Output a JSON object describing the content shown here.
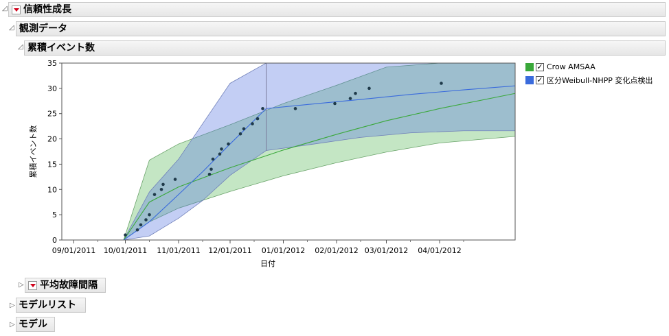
{
  "report": {
    "title": "信頼性成長",
    "observed_section": "観測データ",
    "cumulative_section": "累積イベント数",
    "mtbf_section": "平均故障間隔",
    "model_list_section": "モデルリスト",
    "model_section": "モデル"
  },
  "legend": {
    "items": [
      {
        "label": "Crow AMSAA",
        "color": "#3aa83a",
        "checked": true
      },
      {
        "label": "区分Weibull-NHPP 変化点検出",
        "color": "#3a6bdc",
        "checked": true
      }
    ]
  },
  "chart_data": {
    "type": "scatter",
    "title": "",
    "xlabel": "日付",
    "ylabel": "累積イベント数",
    "xlim": [
      "2011-08-25",
      "2012-05-15"
    ],
    "ylim": [
      0,
      35
    ],
    "yticks": [
      0,
      5,
      10,
      15,
      20,
      25,
      30,
      35
    ],
    "xticks": [
      "09/01/2011",
      "10/01/2011",
      "11/01/2011",
      "12/01/2011",
      "01/01/2012",
      "02/01/2012",
      "03/01/2012",
      "04/01/2012"
    ],
    "grid": false,
    "legend_position": "right",
    "points": {
      "x": [
        "2011-10-01",
        "2011-10-08",
        "2011-10-10",
        "2011-10-13",
        "2011-10-15",
        "2011-10-18",
        "2011-10-22",
        "2011-10-23",
        "2011-10-30",
        "2011-11-19",
        "2011-11-20",
        "2011-11-21",
        "2011-11-25",
        "2011-11-26",
        "2011-11-30",
        "2011-12-07",
        "2011-12-09",
        "2011-12-14",
        "2011-12-17",
        "2011-12-20",
        "2012-01-08",
        "2012-01-31",
        "2012-02-09",
        "2012-02-12",
        "2012-02-20",
        "2012-04-02"
      ],
      "y": [
        1,
        2,
        3,
        4,
        5,
        9,
        10,
        11,
        12,
        13,
        14,
        16,
        17,
        18,
        19,
        21,
        22,
        23,
        24,
        26,
        26,
        27,
        28,
        29,
        30,
        31
      ]
    },
    "series": [
      {
        "name": "Crow AMSAA",
        "color": "#3aa83a",
        "x": [
          "2011-09-30",
          "2011-10-15",
          "2011-11-01",
          "2011-12-01",
          "2012-01-01",
          "2012-02-01",
          "2012-03-01",
          "2012-04-01",
          "2012-05-15"
        ],
        "y": [
          0,
          7.5,
          10.5,
          14.3,
          17.8,
          20.9,
          23.6,
          26.0,
          29.0
        ],
        "lower": [
          0,
          3.6,
          6.3,
          9.6,
          12.7,
          15.3,
          17.4,
          19.2,
          20.5
        ],
        "upper": [
          0,
          15.8,
          19.0,
          22.8,
          27.0,
          30.6,
          34.2,
          37.5,
          41.0
        ]
      },
      {
        "name": "区分Weibull-NHPP 変化点検出",
        "color": "#3a6bdc",
        "change_point": "2011-12-22",
        "x": [
          "2011-09-30",
          "2011-10-15",
          "2011-11-01",
          "2011-11-15",
          "2011-12-01",
          "2011-12-22",
          "2012-01-15",
          "2012-02-15",
          "2012-03-15",
          "2012-04-15",
          "2012-05-15"
        ],
        "y": [
          0,
          3.6,
          9.0,
          13.5,
          19.0,
          26.0,
          26.8,
          27.8,
          28.8,
          29.7,
          30.5
        ],
        "lower": [
          0,
          0.8,
          4.3,
          7.8,
          12.8,
          17.7,
          18.8,
          20.3,
          21.2,
          21.6,
          21.6
        ],
        "upper": [
          0,
          9.5,
          16.0,
          23.0,
          31.0,
          45.0,
          42.0,
          38.0,
          35.0,
          35.0,
          35.0
        ]
      }
    ]
  }
}
